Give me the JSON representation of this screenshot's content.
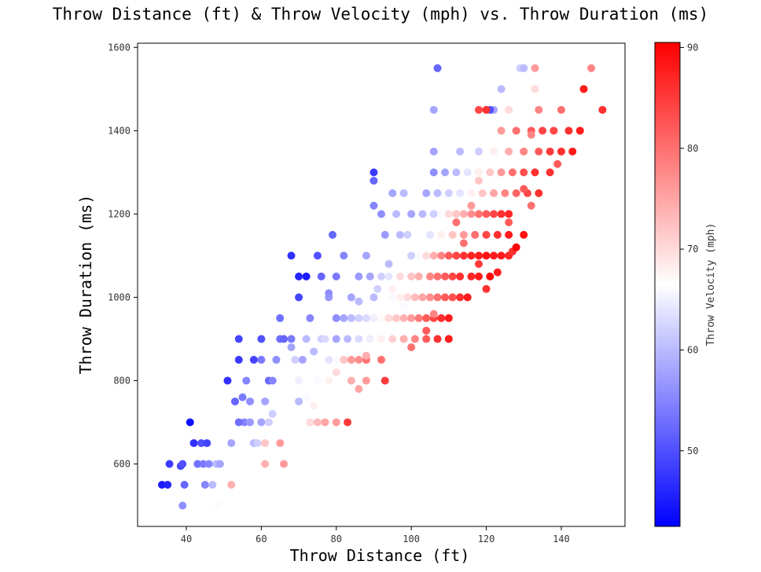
{
  "chart_data": {
    "type": "scatter",
    "title": "Throw Distance (ft) & Throw Velocity (mph) vs. Throw Duration (ms)",
    "xlabel": "Throw Distance (ft)",
    "ylabel": "Throw Duration (ms)",
    "xlim": [
      27,
      157
    ],
    "ylim": [
      450,
      1610
    ],
    "xticks": [
      40,
      60,
      80,
      100,
      120,
      140
    ],
    "yticks": [
      600,
      800,
      1000,
      1200,
      1400,
      1600
    ],
    "colorbar": {
      "label": "Throw Velocity (mph)",
      "range": [
        42.5,
        90.5
      ],
      "ticks": [
        50,
        60,
        70,
        80,
        90
      ],
      "colormap": "bwr",
      "colors": [
        "#0000ff",
        "#ffffff",
        "#ff0000"
      ]
    },
    "grid": false,
    "legend": "none",
    "points": [
      [
        33.5,
        550,
        45
      ],
      [
        35,
        550,
        46
      ],
      [
        35.5,
        600,
        48
      ],
      [
        38.5,
        595,
        49
      ],
      [
        39,
        600,
        50
      ],
      [
        39.5,
        550,
        52
      ],
      [
        39,
        500,
        56
      ],
      [
        41,
        700,
        44
      ],
      [
        42,
        650,
        47
      ],
      [
        43,
        600,
        53
      ],
      [
        44,
        650,
        50
      ],
      [
        45.5,
        650,
        49
      ],
      [
        44.5,
        600,
        54
      ],
      [
        46,
        600,
        55
      ],
      [
        45,
        550,
        55
      ],
      [
        47,
        550,
        60
      ],
      [
        48,
        600,
        60
      ],
      [
        49,
        600,
        58
      ],
      [
        48.5,
        500,
        66
      ],
      [
        52,
        550,
        74
      ],
      [
        51,
        800,
        47
      ],
      [
        53,
        750,
        52
      ],
      [
        54,
        850,
        48
      ],
      [
        54,
        900,
        49
      ],
      [
        55,
        760,
        54
      ],
      [
        56,
        800,
        55
      ],
      [
        57,
        750,
        56
      ],
      [
        55.5,
        700,
        55
      ],
      [
        52,
        650,
        58
      ],
      [
        54,
        700,
        53
      ],
      [
        58,
        650,
        60
      ],
      [
        57,
        700,
        57
      ],
      [
        59,
        650,
        62
      ],
      [
        60,
        700,
        58
      ],
      [
        61,
        750,
        58
      ],
      [
        62,
        700,
        62
      ],
      [
        61,
        650,
        72
      ],
      [
        63,
        720,
        62
      ],
      [
        62,
        800,
        52
      ],
      [
        63,
        800,
        55
      ],
      [
        64,
        850,
        56
      ],
      [
        60,
        850,
        54
      ],
      [
        58,
        850,
        49
      ],
      [
        60,
        900,
        50
      ],
      [
        65,
        900,
        53
      ],
      [
        66,
        900,
        52
      ],
      [
        65,
        950,
        53
      ],
      [
        68,
        900,
        54
      ],
      [
        65,
        650,
        76
      ],
      [
        66,
        600,
        76
      ],
      [
        61,
        600,
        74
      ],
      [
        68,
        880,
        58
      ],
      [
        69,
        850,
        62
      ],
      [
        70,
        800,
        65
      ],
      [
        72,
        760,
        66
      ],
      [
        70,
        750,
        60
      ],
      [
        74,
        740,
        68
      ],
      [
        73,
        700,
        70
      ],
      [
        75,
        700,
        73
      ],
      [
        77,
        700,
        75
      ],
      [
        80,
        700,
        76
      ],
      [
        83,
        700,
        85
      ],
      [
        71,
        850,
        58
      ],
      [
        72,
        900,
        60
      ],
      [
        74,
        870,
        60
      ],
      [
        76,
        900,
        62
      ],
      [
        77,
        900,
        63
      ],
      [
        78,
        850,
        64
      ],
      [
        80,
        850,
        66
      ],
      [
        82,
        850,
        72
      ],
      [
        84,
        850,
        76
      ],
      [
        86,
        850,
        77
      ],
      [
        88,
        850,
        80
      ],
      [
        92,
        850,
        80
      ],
      [
        93,
        800,
        85
      ],
      [
        80,
        820,
        70
      ],
      [
        84,
        800,
        74
      ],
      [
        88,
        800,
        76
      ],
      [
        75,
        800,
        66
      ],
      [
        78,
        800,
        68
      ],
      [
        86,
        780,
        75
      ],
      [
        68,
        1100,
        47
      ],
      [
        70,
        1050,
        46
      ],
      [
        72,
        1050,
        45
      ],
      [
        70,
        1000,
        49
      ],
      [
        73,
        950,
        55
      ],
      [
        75,
        1100,
        50
      ],
      [
        76,
        1050,
        52
      ],
      [
        78,
        1000,
        57
      ],
      [
        79,
        1150,
        52
      ],
      [
        80,
        1050,
        54
      ],
      [
        82,
        1100,
        55
      ],
      [
        84,
        1000,
        58
      ],
      [
        86,
        1050,
        57
      ],
      [
        88,
        1100,
        58
      ],
      [
        89,
        1050,
        58
      ],
      [
        90,
        1000,
        60
      ],
      [
        92,
        1050,
        62
      ],
      [
        94,
        1050,
        64
      ],
      [
        95,
        1000,
        66
      ],
      [
        97,
        1000,
        68
      ],
      [
        99,
        1000,
        70
      ],
      [
        101,
        1000,
        73
      ],
      [
        103,
        1000,
        75
      ],
      [
        105,
        1000,
        77
      ],
      [
        107,
        1000,
        80
      ],
      [
        109,
        1000,
        82
      ],
      [
        111,
        1000,
        83
      ],
      [
        113,
        1000,
        86
      ],
      [
        115,
        1000,
        88
      ],
      [
        80,
        950,
        56
      ],
      [
        82,
        950,
        58
      ],
      [
        84,
        950,
        60
      ],
      [
        86,
        950,
        62
      ],
      [
        88,
        950,
        63
      ],
      [
        90,
        950,
        65
      ],
      [
        92,
        950,
        67
      ],
      [
        94,
        950,
        70
      ],
      [
        96,
        950,
        72
      ],
      [
        98,
        950,
        74
      ],
      [
        100,
        950,
        76
      ],
      [
        102,
        950,
        79
      ],
      [
        104,
        950,
        82
      ],
      [
        106,
        950,
        84
      ],
      [
        108,
        950,
        86
      ],
      [
        110,
        950,
        88
      ],
      [
        80,
        900,
        58
      ],
      [
        83,
        900,
        60
      ],
      [
        86,
        900,
        63
      ],
      [
        89,
        900,
        65
      ],
      [
        92,
        900,
        68
      ],
      [
        95,
        900,
        71
      ],
      [
        98,
        900,
        74
      ],
      [
        101,
        900,
        78
      ],
      [
        104,
        900,
        82
      ],
      [
        107,
        900,
        86
      ],
      [
        110,
        900,
        88
      ],
      [
        100,
        880,
        80
      ],
      [
        104,
        920,
        82
      ],
      [
        88,
        860,
        74
      ],
      [
        90,
        1280,
        52
      ],
      [
        90,
        1220,
        55
      ],
      [
        92,
        1200,
        56
      ],
      [
        93,
        1150,
        57
      ],
      [
        95,
        1250,
        58
      ],
      [
        96,
        1200,
        60
      ],
      [
        97,
        1150,
        60
      ],
      [
        99,
        1150,
        62
      ],
      [
        100,
        1100,
        62
      ],
      [
        102,
        1100,
        66
      ],
      [
        104,
        1100,
        70
      ],
      [
        106,
        1100,
        74
      ],
      [
        108,
        1100,
        78
      ],
      [
        110,
        1100,
        82
      ],
      [
        112,
        1100,
        84
      ],
      [
        114,
        1100,
        86
      ],
      [
        116,
        1100,
        87
      ],
      [
        118,
        1100,
        88
      ],
      [
        120,
        1100,
        89
      ],
      [
        122,
        1100,
        88
      ],
      [
        124,
        1100,
        88
      ],
      [
        126,
        1100,
        87
      ],
      [
        127,
        1110,
        86
      ],
      [
        90,
        1300,
        48
      ],
      [
        98,
        1250,
        60
      ],
      [
        100,
        1200,
        58
      ],
      [
        103,
        1200,
        60
      ],
      [
        106,
        1200,
        62
      ],
      [
        108,
        1200,
        66
      ],
      [
        110,
        1200,
        70
      ],
      [
        112,
        1200,
        72
      ],
      [
        114,
        1200,
        74
      ],
      [
        116,
        1200,
        77
      ],
      [
        118,
        1200,
        80
      ],
      [
        120,
        1200,
        82
      ],
      [
        122,
        1200,
        84
      ],
      [
        124,
        1200,
        86
      ],
      [
        126,
        1200,
        87
      ],
      [
        105,
        1150,
        64
      ],
      [
        108,
        1150,
        68
      ],
      [
        111,
        1150,
        72
      ],
      [
        114,
        1150,
        76
      ],
      [
        117,
        1150,
        80
      ],
      [
        120,
        1150,
        84
      ],
      [
        123,
        1150,
        86
      ],
      [
        126,
        1150,
        88
      ],
      [
        130,
        1150,
        89
      ],
      [
        104,
        1250,
        58
      ],
      [
        107,
        1250,
        60
      ],
      [
        110,
        1250,
        62
      ],
      [
        113,
        1250,
        64
      ],
      [
        116,
        1250,
        68
      ],
      [
        119,
        1250,
        72
      ],
      [
        122,
        1250,
        75
      ],
      [
        125,
        1250,
        78
      ],
      [
        128,
        1250,
        81
      ],
      [
        131,
        1250,
        84
      ],
      [
        134,
        1250,
        86
      ],
      [
        106,
        1300,
        56
      ],
      [
        109,
        1300,
        58
      ],
      [
        112,
        1300,
        60
      ],
      [
        115,
        1300,
        64
      ],
      [
        118,
        1300,
        68
      ],
      [
        121,
        1300,
        72
      ],
      [
        124,
        1300,
        76
      ],
      [
        127,
        1300,
        80
      ],
      [
        130,
        1300,
        83
      ],
      [
        133,
        1300,
        86
      ],
      [
        137,
        1300,
        86
      ],
      [
        106,
        1350,
        58
      ],
      [
        113,
        1350,
        60
      ],
      [
        118,
        1350,
        62
      ],
      [
        122,
        1350,
        68
      ],
      [
        126,
        1350,
        74
      ],
      [
        130,
        1350,
        78
      ],
      [
        134,
        1350,
        82
      ],
      [
        137,
        1350,
        85
      ],
      [
        140,
        1350,
        86
      ],
      [
        143,
        1350,
        88
      ],
      [
        124,
        1400,
        76
      ],
      [
        128,
        1400,
        80
      ],
      [
        132,
        1400,
        82
      ],
      [
        135,
        1400,
        84
      ],
      [
        138,
        1400,
        84
      ],
      [
        142,
        1400,
        86
      ],
      [
        145,
        1400,
        88
      ],
      [
        140,
        1450,
        80
      ],
      [
        134,
        1450,
        78
      ],
      [
        126,
        1450,
        70
      ],
      [
        122,
        1450,
        58
      ],
      [
        121,
        1450,
        50
      ],
      [
        120,
        1450,
        86
      ],
      [
        118,
        1450,
        84
      ],
      [
        106,
        1450,
        58
      ],
      [
        146,
        1500,
        88
      ],
      [
        133,
        1500,
        70
      ],
      [
        124,
        1500,
        60
      ],
      [
        151,
        1450,
        86
      ],
      [
        129,
        1550,
        62
      ],
      [
        130,
        1550,
        60
      ],
      [
        133,
        1550,
        76
      ],
      [
        148,
        1550,
        78
      ],
      [
        107,
        1550,
        52
      ],
      [
        111,
        1050,
        84
      ],
      [
        113,
        1050,
        86
      ],
      [
        116,
        1050,
        87
      ],
      [
        118,
        1050,
        88
      ],
      [
        121,
        1050,
        90
      ],
      [
        109,
        1050,
        82
      ],
      [
        107,
        1050,
        80
      ],
      [
        105,
        1050,
        78
      ],
      [
        102,
        1050,
        74
      ],
      [
        100,
        1050,
        72
      ],
      [
        97,
        1050,
        70
      ],
      [
        116,
        1220,
        76
      ],
      [
        118,
        1280,
        72
      ],
      [
        132,
        1390,
        78
      ],
      [
        139,
        1320,
        82
      ],
      [
        128,
        1120,
        90
      ],
      [
        112,
        1180,
        80
      ],
      [
        120,
        1020,
        86
      ],
      [
        95,
        1020,
        68
      ],
      [
        91,
        1020,
        62
      ],
      [
        106,
        960,
        78
      ],
      [
        98,
        980,
        66
      ],
      [
        86,
        990,
        60
      ],
      [
        78,
        1010,
        56
      ],
      [
        94,
        1080,
        60
      ],
      [
        118,
        1080,
        85
      ],
      [
        123,
        1060,
        88
      ],
      [
        114,
        1130,
        80
      ],
      [
        126,
        1180,
        82
      ],
      [
        132,
        1220,
        80
      ],
      [
        130,
        1260,
        82
      ]
    ]
  }
}
